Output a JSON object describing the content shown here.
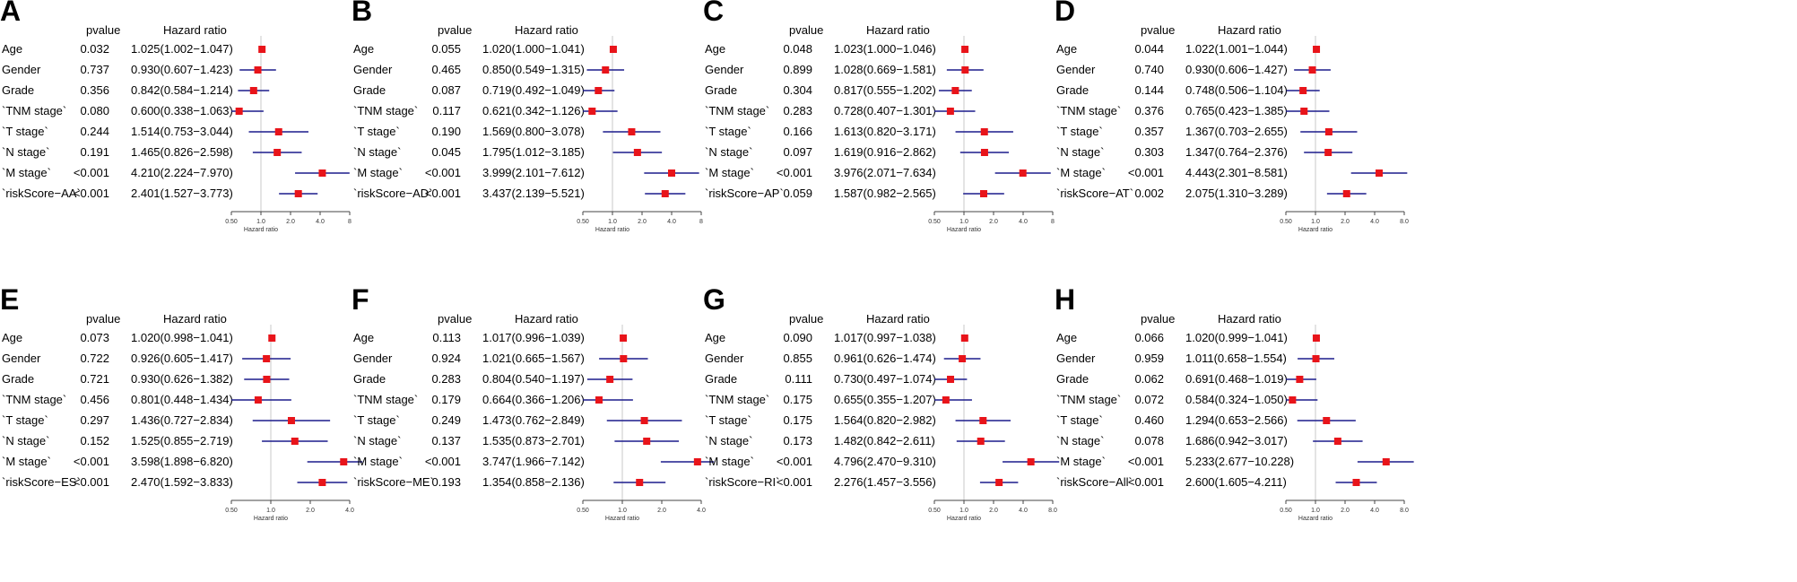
{
  "chart_data": [
    {
      "type": "forest",
      "label": "A",
      "col_pvalue": "pvalue",
      "col_hr": "Hazard ratio",
      "xlabel": "Hazard ratio",
      "ticks": [
        "0.50",
        "1.0",
        "2.0",
        "4.0",
        "8"
      ],
      "rows": [
        {
          "var": "Age",
          "p": "0.032",
          "hr_text": "1.025(1.002−1.047)",
          "hr": 1.025,
          "lo": 1.002,
          "hi": 1.047
        },
        {
          "var": "Gender",
          "p": "0.737",
          "hr_text": "0.930(0.607−1.423)",
          "hr": 0.93,
          "lo": 0.607,
          "hi": 1.423
        },
        {
          "var": "Grade",
          "p": "0.356",
          "hr_text": "0.842(0.584−1.214)",
          "hr": 0.842,
          "lo": 0.584,
          "hi": 1.214
        },
        {
          "var": "`TNM stage`",
          "p": "0.080",
          "hr_text": "0.600(0.338−1.063)",
          "hr": 0.6,
          "lo": 0.338,
          "hi": 1.063
        },
        {
          "var": "`T stage`",
          "p": "0.244",
          "hr_text": "1.514(0.753−3.044)",
          "hr": 1.514,
          "lo": 0.753,
          "hi": 3.044
        },
        {
          "var": "`N stage`",
          "p": "0.191",
          "hr_text": "1.465(0.826−2.598)",
          "hr": 1.465,
          "lo": 0.826,
          "hi": 2.598
        },
        {
          "var": "`M stage`",
          "p": "<0.001",
          "hr_text": "4.210(2.224−7.970)",
          "hr": 4.21,
          "lo": 2.224,
          "hi": 7.97
        },
        {
          "var": "`riskScore−AA`",
          "p": "<0.001",
          "hr_text": "2.401(1.527−3.773)",
          "hr": 2.401,
          "lo": 1.527,
          "hi": 3.773
        }
      ]
    },
    {
      "type": "forest",
      "label": "B",
      "col_pvalue": "pvalue",
      "col_hr": "Hazard ratio",
      "xlabel": "Hazard ratio",
      "ticks": [
        "0.50",
        "1.0",
        "2.0",
        "4.0",
        "8"
      ],
      "rows": [
        {
          "var": "Age",
          "p": "0.055",
          "hr_text": "1.020(1.000−1.041)",
          "hr": 1.02,
          "lo": 1.0,
          "hi": 1.041
        },
        {
          "var": "Gender",
          "p": "0.465",
          "hr_text": "0.850(0.549−1.315)",
          "hr": 0.85,
          "lo": 0.549,
          "hi": 1.315
        },
        {
          "var": "Grade",
          "p": "0.087",
          "hr_text": "0.719(0.492−1.049)",
          "hr": 0.719,
          "lo": 0.492,
          "hi": 1.049
        },
        {
          "var": "`TNM stage`",
          "p": "0.117",
          "hr_text": "0.621(0.342−1.126)",
          "hr": 0.621,
          "lo": 0.342,
          "hi": 1.126
        },
        {
          "var": "`T stage`",
          "p": "0.190",
          "hr_text": "1.569(0.800−3.078)",
          "hr": 1.569,
          "lo": 0.8,
          "hi": 3.078
        },
        {
          "var": "`N stage`",
          "p": "0.045",
          "hr_text": "1.795(1.012−3.185)",
          "hr": 1.795,
          "lo": 1.012,
          "hi": 3.185
        },
        {
          "var": "`M stage`",
          "p": "<0.001",
          "hr_text": "3.999(2.101−7.612)",
          "hr": 3.999,
          "lo": 2.101,
          "hi": 7.612
        },
        {
          "var": "`riskScore−AD`",
          "p": "<0.001",
          "hr_text": "3.437(2.139−5.521)",
          "hr": 3.437,
          "lo": 2.139,
          "hi": 5.521
        }
      ]
    },
    {
      "type": "forest",
      "label": "C",
      "col_pvalue": "pvalue",
      "col_hr": "Hazard ratio",
      "xlabel": "Hazard ratio",
      "ticks": [
        "0.50",
        "1.0",
        "2.0",
        "4.0",
        "8"
      ],
      "rows": [
        {
          "var": "Age",
          "p": "0.048",
          "hr_text": "1.023(1.000−1.046)",
          "hr": 1.023,
          "lo": 1.0,
          "hi": 1.046
        },
        {
          "var": "Gender",
          "p": "0.899",
          "hr_text": "1.028(0.669−1.581)",
          "hr": 1.028,
          "lo": 0.669,
          "hi": 1.581
        },
        {
          "var": "Grade",
          "p": "0.304",
          "hr_text": "0.817(0.555−1.202)",
          "hr": 0.817,
          "lo": 0.555,
          "hi": 1.202
        },
        {
          "var": "`TNM stage`",
          "p": "0.283",
          "hr_text": "0.728(0.407−1.301)",
          "hr": 0.728,
          "lo": 0.407,
          "hi": 1.301
        },
        {
          "var": "`T stage`",
          "p": "0.166",
          "hr_text": "1.613(0.820−3.171)",
          "hr": 1.613,
          "lo": 0.82,
          "hi": 3.171
        },
        {
          "var": "`N stage`",
          "p": "0.097",
          "hr_text": "1.619(0.916−2.862)",
          "hr": 1.619,
          "lo": 0.916,
          "hi": 2.862
        },
        {
          "var": "`M stage`",
          "p": "<0.001",
          "hr_text": "3.976(2.071−7.634)",
          "hr": 3.976,
          "lo": 2.071,
          "hi": 7.634
        },
        {
          "var": "`riskScore−AP`",
          "p": "0.059",
          "hr_text": "1.587(0.982−2.565)",
          "hr": 1.587,
          "lo": 0.982,
          "hi": 2.565
        }
      ]
    },
    {
      "type": "forest",
      "label": "D",
      "col_pvalue": "pvalue",
      "col_hr": "Hazard ratio",
      "xlabel": "Hazard ratio",
      "ticks": [
        "0.50",
        "1.0",
        "2.0",
        "4.0",
        "8.0"
      ],
      "rows": [
        {
          "var": "Age",
          "p": "0.044",
          "hr_text": "1.022(1.001−1.044)",
          "hr": 1.022,
          "lo": 1.001,
          "hi": 1.044
        },
        {
          "var": "Gender",
          "p": "0.740",
          "hr_text": "0.930(0.606−1.427)",
          "hr": 0.93,
          "lo": 0.606,
          "hi": 1.427
        },
        {
          "var": "Grade",
          "p": "0.144",
          "hr_text": "0.748(0.506−1.104)",
          "hr": 0.748,
          "lo": 0.506,
          "hi": 1.104
        },
        {
          "var": "`TNM stage`",
          "p": "0.376",
          "hr_text": "0.765(0.423−1.385)",
          "hr": 0.765,
          "lo": 0.423,
          "hi": 1.385
        },
        {
          "var": "`T stage`",
          "p": "0.357",
          "hr_text": "1.367(0.703−2.655)",
          "hr": 1.367,
          "lo": 0.703,
          "hi": 2.655
        },
        {
          "var": "`N stage`",
          "p": "0.303",
          "hr_text": "1.347(0.764−2.376)",
          "hr": 1.347,
          "lo": 0.764,
          "hi": 2.376
        },
        {
          "var": "`M stage`",
          "p": "<0.001",
          "hr_text": "4.443(2.301−8.581)",
          "hr": 4.443,
          "lo": 2.301,
          "hi": 8.581
        },
        {
          "var": "`riskScore−AT`",
          "p": "0.002",
          "hr_text": "2.075(1.310−3.289)",
          "hr": 2.075,
          "lo": 1.31,
          "hi": 3.289
        }
      ]
    },
    {
      "type": "forest",
      "label": "E",
      "col_pvalue": "pvalue",
      "col_hr": "Hazard ratio",
      "xlabel": "Hazard ratio",
      "ticks": [
        "0.50",
        "1.0",
        "2.0",
        "4.0"
      ],
      "rows": [
        {
          "var": "Age",
          "p": "0.073",
          "hr_text": "1.020(0.998−1.041)",
          "hr": 1.02,
          "lo": 0.998,
          "hi": 1.041
        },
        {
          "var": "Gender",
          "p": "0.722",
          "hr_text": "0.926(0.605−1.417)",
          "hr": 0.926,
          "lo": 0.605,
          "hi": 1.417
        },
        {
          "var": "Grade",
          "p": "0.721",
          "hr_text": "0.930(0.626−1.382)",
          "hr": 0.93,
          "lo": 0.626,
          "hi": 1.382
        },
        {
          "var": "`TNM stage`",
          "p": "0.456",
          "hr_text": "0.801(0.448−1.434)",
          "hr": 0.801,
          "lo": 0.448,
          "hi": 1.434
        },
        {
          "var": "`T stage`",
          "p": "0.297",
          "hr_text": "1.436(0.727−2.834)",
          "hr": 1.436,
          "lo": 0.727,
          "hi": 2.834
        },
        {
          "var": "`N stage`",
          "p": "0.152",
          "hr_text": "1.525(0.855−2.719)",
          "hr": 1.525,
          "lo": 0.855,
          "hi": 2.719
        },
        {
          "var": "`M stage`",
          "p": "<0.001",
          "hr_text": "3.598(1.898−6.820)",
          "hr": 3.598,
          "lo": 1.898,
          "hi": 6.82
        },
        {
          "var": "`riskScore−ES`",
          "p": "<0.001",
          "hr_text": "2.470(1.592−3.833)",
          "hr": 2.47,
          "lo": 1.592,
          "hi": 3.833
        }
      ]
    },
    {
      "type": "forest",
      "label": "F",
      "col_pvalue": "pvalue",
      "col_hr": "Hazard ratio",
      "xlabel": "Hazard ratio",
      "ticks": [
        "0.50",
        "1.0",
        "2.0",
        "4.0"
      ],
      "rows": [
        {
          "var": "Age",
          "p": "0.113",
          "hr_text": "1.017(0.996−1.039)",
          "hr": 1.017,
          "lo": 0.996,
          "hi": 1.039
        },
        {
          "var": "Gender",
          "p": "0.924",
          "hr_text": "1.021(0.665−1.567)",
          "hr": 1.021,
          "lo": 0.665,
          "hi": 1.567
        },
        {
          "var": "Grade",
          "p": "0.283",
          "hr_text": "0.804(0.540−1.197)",
          "hr": 0.804,
          "lo": 0.54,
          "hi": 1.197
        },
        {
          "var": "`TNM stage`",
          "p": "0.179",
          "hr_text": "0.664(0.366−1.206)",
          "hr": 0.664,
          "lo": 0.366,
          "hi": 1.206
        },
        {
          "var": "`T stage`",
          "p": "0.249",
          "hr_text": "1.473(0.762−2.849)",
          "hr": 1.473,
          "lo": 0.762,
          "hi": 2.849
        },
        {
          "var": "`N stage`",
          "p": "0.137",
          "hr_text": "1.535(0.873−2.701)",
          "hr": 1.535,
          "lo": 0.873,
          "hi": 2.701
        },
        {
          "var": "`M stage`",
          "p": "<0.001",
          "hr_text": "3.747(1.966−7.142)",
          "hr": 3.747,
          "lo": 1.966,
          "hi": 7.142
        },
        {
          "var": "`riskScore−ME`",
          "p": "0.193",
          "hr_text": "1.354(0.858−2.136)",
          "hr": 1.354,
          "lo": 0.858,
          "hi": 2.136
        }
      ]
    },
    {
      "type": "forest",
      "label": "G",
      "col_pvalue": "pvalue",
      "col_hr": "Hazard ratio",
      "xlabel": "Hazard ratio",
      "ticks": [
        "0.50",
        "1.0",
        "2.0",
        "4.0",
        "8.0"
      ],
      "rows": [
        {
          "var": "Age",
          "p": "0.090",
          "hr_text": "1.017(0.997−1.038)",
          "hr": 1.017,
          "lo": 0.997,
          "hi": 1.038
        },
        {
          "var": "Gender",
          "p": "0.855",
          "hr_text": "0.961(0.626−1.474)",
          "hr": 0.961,
          "lo": 0.626,
          "hi": 1.474
        },
        {
          "var": "Grade",
          "p": "0.111",
          "hr_text": "0.730(0.497−1.074)",
          "hr": 0.73,
          "lo": 0.497,
          "hi": 1.074
        },
        {
          "var": "`TNM stage`",
          "p": "0.175",
          "hr_text": "0.655(0.355−1.207)",
          "hr": 0.655,
          "lo": 0.355,
          "hi": 1.207
        },
        {
          "var": "`T stage`",
          "p": "0.175",
          "hr_text": "1.564(0.820−2.982)",
          "hr": 1.564,
          "lo": 0.82,
          "hi": 2.982
        },
        {
          "var": "`N stage`",
          "p": "0.173",
          "hr_text": "1.482(0.842−2.611)",
          "hr": 1.482,
          "lo": 0.842,
          "hi": 2.611
        },
        {
          "var": "`M stage`",
          "p": "<0.001",
          "hr_text": "4.796(2.470−9.310)",
          "hr": 4.796,
          "lo": 2.47,
          "hi": 9.31
        },
        {
          "var": "`riskScore−RI`",
          "p": "<0.001",
          "hr_text": "2.276(1.457−3.556)",
          "hr": 2.276,
          "lo": 1.457,
          "hi": 3.556
        }
      ]
    },
    {
      "type": "forest",
      "label": "H",
      "col_pvalue": "pvalue",
      "col_hr": "Hazard ratio",
      "xlabel": "Hazard ratio",
      "ticks": [
        "0.50",
        "1.0",
        "2.0",
        "4.0",
        "8.0"
      ],
      "rows": [
        {
          "var": "Age",
          "p": "0.066",
          "hr_text": "1.020(0.999−1.041)",
          "hr": 1.02,
          "lo": 0.999,
          "hi": 1.041
        },
        {
          "var": "Gender",
          "p": "0.959",
          "hr_text": "1.011(0.658−1.554)",
          "hr": 1.011,
          "lo": 0.658,
          "hi": 1.554
        },
        {
          "var": "Grade",
          "p": "0.062",
          "hr_text": "0.691(0.468−1.019)",
          "hr": 0.691,
          "lo": 0.468,
          "hi": 1.019
        },
        {
          "var": "`TNM stage`",
          "p": "0.072",
          "hr_text": "0.584(0.324−1.050)",
          "hr": 0.584,
          "lo": 0.324,
          "hi": 1.05
        },
        {
          "var": "`T stage`",
          "p": "0.460",
          "hr_text": "1.294(0.653−2.566)",
          "hr": 1.294,
          "lo": 0.653,
          "hi": 2.566
        },
        {
          "var": "`N stage`",
          "p": "0.078",
          "hr_text": "1.686(0.942−3.017)",
          "hr": 1.686,
          "lo": 0.942,
          "hi": 3.017
        },
        {
          "var": "`M stage`",
          "p": "<0.001",
          "hr_text": "5.233(2.677−10.228)",
          "hr": 5.233,
          "lo": 2.677,
          "hi": 10.228
        },
        {
          "var": "`riskScore−All`",
          "p": "<0.001",
          "hr_text": "2.600(1.605−4.211)",
          "hr": 2.6,
          "lo": 1.605,
          "hi": 4.211
        }
      ]
    }
  ],
  "colors": {
    "marker": "#e8141a",
    "ci_line": "#1c1c8c",
    "ref_line": "#c8c8c8",
    "axis": "#444444"
  }
}
